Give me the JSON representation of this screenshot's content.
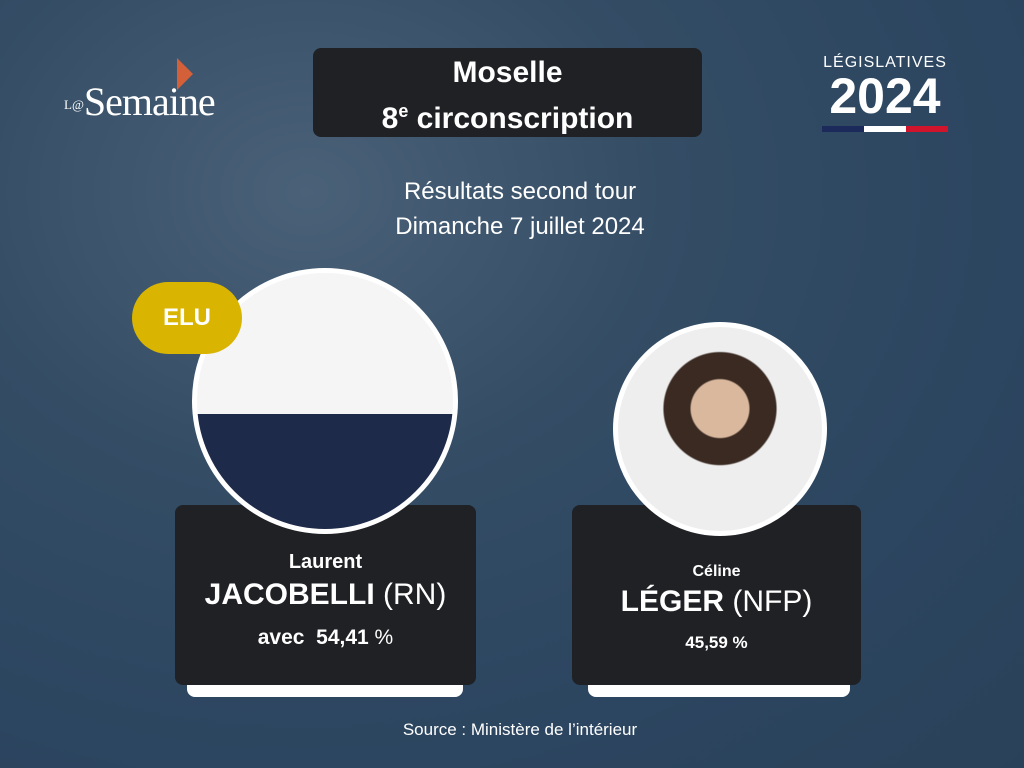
{
  "logo": {
    "prefix": "L@",
    "name": "Semaine"
  },
  "header": {
    "title_line1": "Moselle",
    "circ_number": "8",
    "circ_suffix": "e",
    "circ_label": " circonscription"
  },
  "badge": {
    "label": "LÉGISLATIVES",
    "year": "2024",
    "flag_colors": [
      "#1b2a5a",
      "#ffffff",
      "#d0142c"
    ]
  },
  "subtitle": {
    "line1": "Résultats second tour",
    "line2": "Dimanche 7 juillet 2024"
  },
  "candidates": [
    {
      "first_name": "Laurent",
      "last_name": "JACOBELLI",
      "party": "(RN)",
      "prefix": "avec",
      "score": "54,41",
      "unit": "%",
      "elected_label": "ELU"
    },
    {
      "first_name": "Céline",
      "last_name": "LÉGER",
      "party": "(NFP)",
      "score": "45,59 %"
    }
  ],
  "colors": {
    "elu": "#d9b400",
    "card": "#1f2125"
  },
  "source": "Source : Ministère de l’intérieur"
}
